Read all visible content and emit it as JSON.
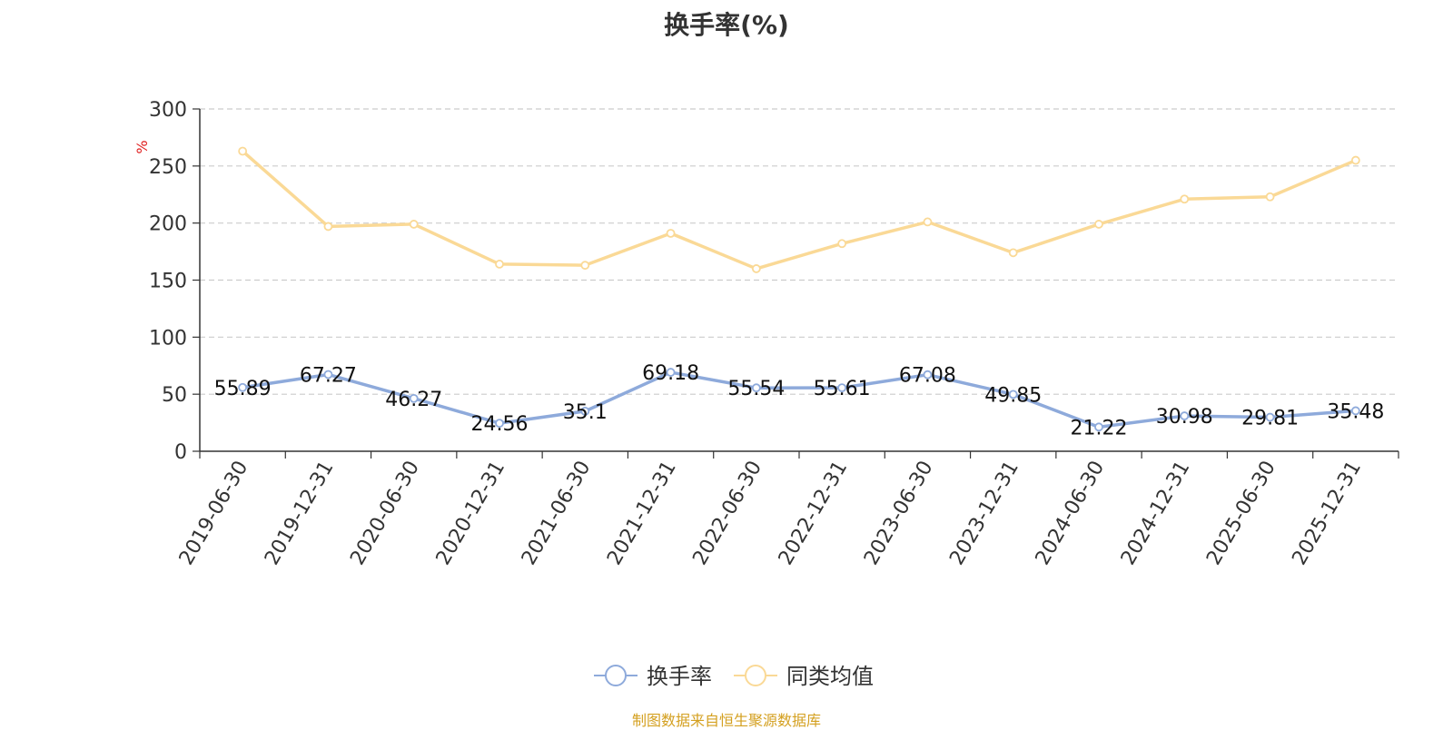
{
  "chart_data": {
    "type": "line",
    "title": "换手率(%)",
    "ylabel": "%",
    "ylim": [
      0,
      300
    ],
    "yticks": [
      "0",
      "50",
      "100",
      "150",
      "200",
      "250",
      "300"
    ],
    "categories": [
      "2019-06-30",
      "2019-12-31",
      "2020-06-30",
      "2020-12-31",
      "2021-06-30",
      "2021-12-31",
      "2022-06-30",
      "2022-12-31",
      "2023-06-30",
      "2023-12-31",
      "2024-06-30",
      "2024-12-31",
      "2025-06-30",
      "2025-12-31"
    ],
    "series": [
      {
        "name": "换手率",
        "color": "#8eaadb",
        "values": [
          55.89,
          67.27,
          46.27,
          24.56,
          35.1,
          69.18,
          55.54,
          55.61,
          67.08,
          49.85,
          21.22,
          30.98,
          29.81,
          35.48
        ],
        "labels": [
          "55.89",
          "67.27",
          "46.27",
          "24.56",
          "35.1",
          "69.18",
          "55.54",
          "55.61",
          "67.08",
          "49.85",
          "21.22",
          "30.98",
          "29.81",
          "35.48"
        ]
      },
      {
        "name": "同类均值",
        "color": "#fad996",
        "values": [
          263,
          197,
          199,
          164,
          163,
          191,
          160,
          182,
          201,
          174,
          199,
          221,
          223,
          255
        ]
      }
    ],
    "grid": true,
    "legend_position": "bottom-center"
  },
  "source_text": "制图数据来自恒生聚源数据库"
}
